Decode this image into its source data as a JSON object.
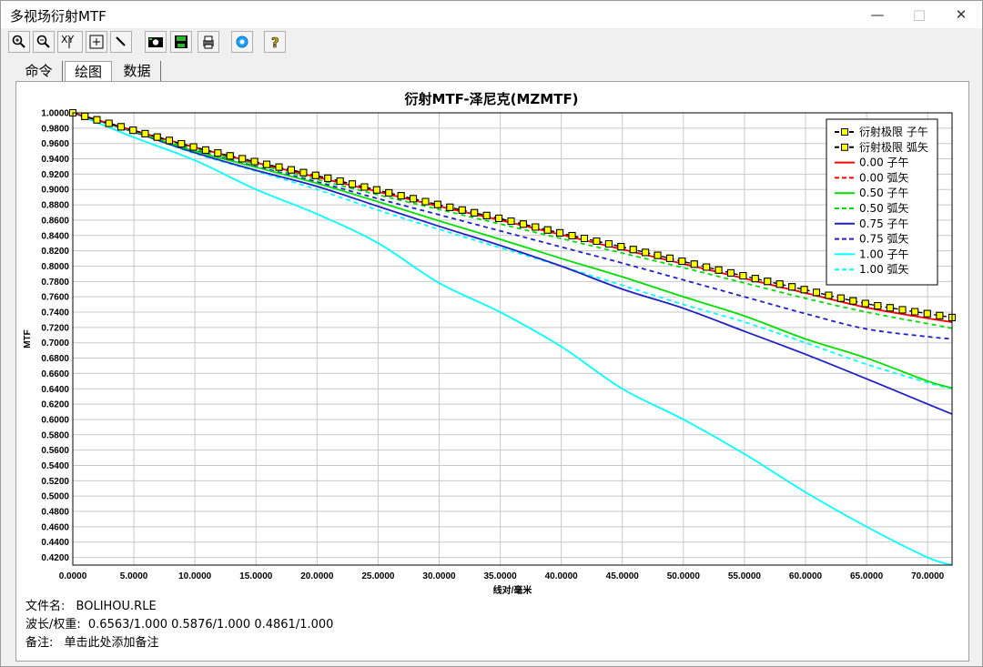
{
  "window": {
    "title": "多视场衍射MTF",
    "controls": [
      "—",
      "□",
      "✕"
    ]
  },
  "toolbar": {
    "buttons": [
      "zoom-in",
      "zoom-out",
      "xy-scale",
      "fit",
      "pen",
      "camera",
      "save",
      "print",
      "settings",
      "help"
    ],
    "xy_label": "XY"
  },
  "tabs": [
    {
      "label": "命令",
      "active": false
    },
    {
      "label": "绘图",
      "active": true
    },
    {
      "label": "数据",
      "active": false
    }
  ],
  "info": {
    "file_label": "文件名:",
    "file_value": "BOLIHOU.RLE",
    "wavelength_label": "波长/权重:",
    "wavelength_value": "0.6563/1.000  0.5876/1.000  0.4861/1.000",
    "note_label": "备注:",
    "note_value": "单击此处添加备注"
  },
  "chart_data": {
    "type": "line",
    "title": "衍射MTF-泽尼克(MZMTF)",
    "xlabel": "线对/毫米",
    "ylabel": "MTF",
    "xlim": [
      0,
      72
    ],
    "ylim": [
      0.41,
      1.0
    ],
    "x_ticks": [
      "0.0000",
      "5.0000",
      "10.0000",
      "15.0000",
      "20.0000",
      "25.0000",
      "30.0000",
      "35.0000",
      "40.0000",
      "45.0000",
      "50.0000",
      "55.0000",
      "60.0000",
      "65.0000",
      "70.0000"
    ],
    "y_ticks": [
      "1.0000",
      "0.9800",
      "0.9600",
      "0.9400",
      "0.9200",
      "0.9000",
      "0.8800",
      "0.8600",
      "0.8400",
      "0.8200",
      "0.8000",
      "0.7800",
      "0.7600",
      "0.7400",
      "0.7200",
      "0.7000",
      "0.6800",
      "0.6600",
      "0.6400",
      "0.6200",
      "0.6000",
      "0.5800",
      "0.5600",
      "0.5400",
      "0.5200",
      "0.5000",
      "0.4800",
      "0.4600",
      "0.4400",
      "0.4200"
    ],
    "grid": true,
    "legend_position": "top-right",
    "x": [
      0,
      5,
      10,
      15,
      20,
      25,
      30,
      35,
      40,
      45,
      50,
      55,
      60,
      65,
      70,
      72
    ],
    "series": [
      {
        "name": "衍射极限 子午",
        "color": "#000000",
        "dash": "dash",
        "marker": "square",
        "values": [
          1.0,
          0.977,
          0.955,
          0.936,
          0.918,
          0.899,
          0.88,
          0.862,
          0.843,
          0.825,
          0.806,
          0.787,
          0.769,
          0.751,
          0.738,
          0.733
        ]
      },
      {
        "name": "衍射极限 弧矢",
        "color": "#000000",
        "dash": "dash",
        "marker": "square",
        "values": [
          1.0,
          0.977,
          0.955,
          0.936,
          0.918,
          0.899,
          0.88,
          0.862,
          0.843,
          0.825,
          0.806,
          0.787,
          0.769,
          0.751,
          0.738,
          0.733
        ]
      },
      {
        "name": "0.00 子午",
        "color": "#ff0000",
        "dash": "solid",
        "values": [
          1.0,
          0.977,
          0.955,
          0.935,
          0.916,
          0.897,
          0.878,
          0.86,
          0.841,
          0.822,
          0.803,
          0.784,
          0.765,
          0.746,
          0.732,
          0.727
        ]
      },
      {
        "name": "0.00 弧矢",
        "color": "#ff0000",
        "dash": "dash",
        "values": [
          1.0,
          0.977,
          0.955,
          0.935,
          0.916,
          0.897,
          0.878,
          0.86,
          0.841,
          0.822,
          0.803,
          0.784,
          0.765,
          0.746,
          0.732,
          0.727
        ]
      },
      {
        "name": "0.50 子午",
        "color": "#00e000",
        "dash": "solid",
        "values": [
          1.0,
          0.976,
          0.95,
          0.929,
          0.908,
          0.884,
          0.859,
          0.835,
          0.81,
          0.786,
          0.76,
          0.735,
          0.705,
          0.68,
          0.65,
          0.641
        ]
      },
      {
        "name": "0.50 弧矢",
        "color": "#00e000",
        "dash": "dash",
        "values": [
          1.0,
          0.976,
          0.953,
          0.933,
          0.913,
          0.893,
          0.874,
          0.855,
          0.836,
          0.817,
          0.798,
          0.778,
          0.758,
          0.74,
          0.725,
          0.719
        ]
      },
      {
        "name": "0.75 子午",
        "color": "#2020c8",
        "dash": "solid",
        "values": [
          1.0,
          0.975,
          0.948,
          0.925,
          0.904,
          0.878,
          0.852,
          0.827,
          0.8,
          0.77,
          0.745,
          0.715,
          0.685,
          0.653,
          0.62,
          0.607
        ]
      },
      {
        "name": "0.75 弧矢",
        "color": "#2020c8",
        "dash": "dash",
        "values": [
          1.0,
          0.976,
          0.951,
          0.93,
          0.91,
          0.888,
          0.867,
          0.846,
          0.825,
          0.804,
          0.782,
          0.76,
          0.738,
          0.718,
          0.708,
          0.705
        ]
      },
      {
        "name": "1.00 子午",
        "color": "#00ffff",
        "dash": "solid",
        "values": [
          1.0,
          0.968,
          0.938,
          0.9,
          0.868,
          0.83,
          0.778,
          0.74,
          0.695,
          0.64,
          0.6,
          0.555,
          0.505,
          0.46,
          0.42,
          0.41
        ]
      },
      {
        "name": "1.00 弧矢",
        "color": "#00ffff",
        "dash": "dash",
        "values": [
          1.0,
          0.975,
          0.947,
          0.924,
          0.9,
          0.873,
          0.848,
          0.824,
          0.8,
          0.775,
          0.75,
          0.727,
          0.7,
          0.672,
          0.648,
          0.64
        ]
      }
    ]
  }
}
